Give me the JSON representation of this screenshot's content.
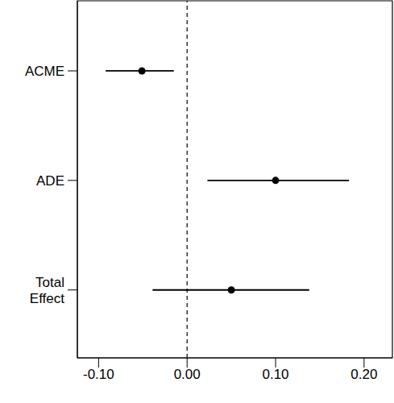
{
  "chart_data": {
    "type": "forest",
    "categories": [
      "ACME",
      "ADE",
      "Total Effect"
    ],
    "values": [
      -0.051,
      0.1,
      0.05
    ],
    "ci_lower": [
      -0.092,
      0.023,
      -0.039
    ],
    "ci_upper": [
      -0.015,
      0.183,
      0.138
    ],
    "xlim": [
      -0.124,
      0.232
    ],
    "xticks": [
      {
        "value": -0.1,
        "label": "-0.10"
      },
      {
        "value": 0,
        "label": "0.00"
      },
      {
        "value": 0.1,
        "label": "0.10"
      },
      {
        "value": 0.2,
        "label": "0.20"
      }
    ],
    "reference_line": 0,
    "line_style": "dashed",
    "marker": "circle",
    "color": "#000000",
    "grid": false
  }
}
